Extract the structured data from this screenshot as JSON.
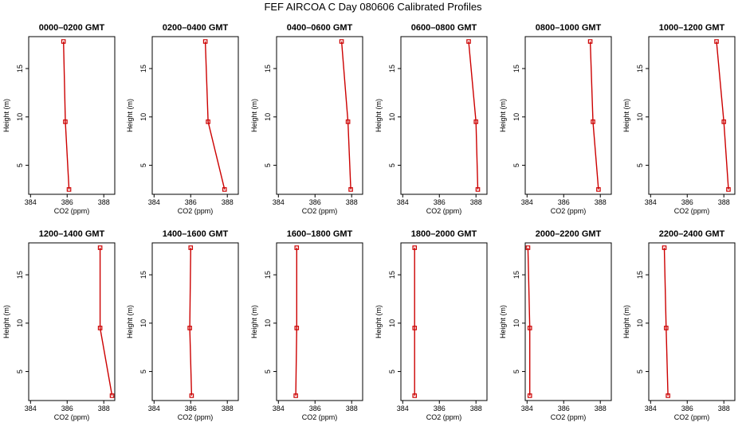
{
  "title": "FEF AIRCOA C  Day 080606  Calibrated Profiles",
  "colors": {
    "line": "#cc0000",
    "marker": "#cc0000",
    "axis": "#000000"
  },
  "chart_data": [
    {
      "type": "line",
      "title": "0000–0200 GMT",
      "xlabel": "CO2 (ppm)",
      "ylabel": "Height (m)",
      "xlim": [
        383.9,
        388.6
      ],
      "ylim": [
        2,
        18.3
      ],
      "xticks": [
        384,
        386,
        388
      ],
      "yticks": [
        5,
        10,
        15
      ],
      "x": [
        385.8,
        385.9,
        386.1
      ],
      "y": [
        17.8,
        9.5,
        2.5
      ]
    },
    {
      "type": "line",
      "title": "0200–0400 GMT",
      "xlabel": "CO2 (ppm)",
      "ylabel": "Height (m)",
      "xlim": [
        383.9,
        388.6
      ],
      "ylim": [
        2,
        18.3
      ],
      "xticks": [
        384,
        386,
        388
      ],
      "yticks": [
        5,
        10,
        15
      ],
      "x": [
        386.8,
        386.95,
        387.85
      ],
      "y": [
        17.8,
        9.5,
        2.5
      ]
    },
    {
      "type": "line",
      "title": "0400–0600 GMT",
      "xlabel": "CO2 (ppm)",
      "ylabel": "Height (m)",
      "xlim": [
        383.9,
        388.6
      ],
      "ylim": [
        2,
        18.3
      ],
      "xticks": [
        384,
        386,
        388
      ],
      "yticks": [
        5,
        10,
        15
      ],
      "x": [
        387.45,
        387.8,
        387.95
      ],
      "y": [
        17.8,
        9.5,
        2.5
      ]
    },
    {
      "type": "line",
      "title": "0600–0800 GMT",
      "xlabel": "CO2 (ppm)",
      "ylabel": "Height (m)",
      "xlim": [
        383.9,
        388.6
      ],
      "ylim": [
        2,
        18.3
      ],
      "xticks": [
        384,
        386,
        388
      ],
      "yticks": [
        5,
        10,
        15
      ],
      "x": [
        387.6,
        388.0,
        388.1
      ],
      "y": [
        17.8,
        9.5,
        2.5
      ]
    },
    {
      "type": "line",
      "title": "0800–1000 GMT",
      "xlabel": "CO2 (ppm)",
      "ylabel": "Height (m)",
      "xlim": [
        383.9,
        388.6
      ],
      "ylim": [
        2,
        18.3
      ],
      "xticks": [
        384,
        386,
        388
      ],
      "yticks": [
        5,
        10,
        15
      ],
      "x": [
        387.45,
        387.6,
        387.9
      ],
      "y": [
        17.8,
        9.5,
        2.5
      ]
    },
    {
      "type": "line",
      "title": "1000–1200 GMT",
      "xlabel": "CO2 (ppm)",
      "ylabel": "Height (m)",
      "xlim": [
        383.9,
        388.6
      ],
      "ylim": [
        2,
        18.3
      ],
      "xticks": [
        384,
        386,
        388
      ],
      "yticks": [
        5,
        10,
        15
      ],
      "x": [
        387.6,
        388.0,
        388.25
      ],
      "y": [
        17.8,
        9.5,
        2.5
      ]
    },
    {
      "type": "line",
      "title": "1200–1400 GMT",
      "xlabel": "CO2 (ppm)",
      "ylabel": "Height (m)",
      "xlim": [
        383.9,
        388.6
      ],
      "ylim": [
        2,
        18.3
      ],
      "xticks": [
        384,
        386,
        388
      ],
      "yticks": [
        5,
        10,
        15
      ],
      "x": [
        387.8,
        387.8,
        388.45
      ],
      "y": [
        17.8,
        9.5,
        2.5
      ]
    },
    {
      "type": "line",
      "title": "1400–1600 GMT",
      "xlabel": "CO2 (ppm)",
      "ylabel": "Height (m)",
      "xlim": [
        383.9,
        388.6
      ],
      "ylim": [
        2,
        18.3
      ],
      "xticks": [
        384,
        386,
        388
      ],
      "yticks": [
        5,
        10,
        15
      ],
      "x": [
        386.0,
        385.95,
        386.05
      ],
      "y": [
        17.8,
        9.5,
        2.5
      ]
    },
    {
      "type": "line",
      "title": "1600–1800 GMT",
      "xlabel": "CO2 (ppm)",
      "ylabel": "Height (m)",
      "xlim": [
        383.9,
        388.6
      ],
      "ylim": [
        2,
        18.3
      ],
      "xticks": [
        384,
        386,
        388
      ],
      "yticks": [
        5,
        10,
        15
      ],
      "x": [
        385.0,
        385.0,
        384.95
      ],
      "y": [
        17.8,
        9.5,
        2.5
      ]
    },
    {
      "type": "line",
      "title": "1800–2000 GMT",
      "xlabel": "CO2 (ppm)",
      "ylabel": "Height (m)",
      "xlim": [
        383.9,
        388.6
      ],
      "ylim": [
        2,
        18.3
      ],
      "xticks": [
        384,
        386,
        388
      ],
      "yticks": [
        5,
        10,
        15
      ],
      "x": [
        384.65,
        384.65,
        384.65
      ],
      "y": [
        17.8,
        9.5,
        2.5
      ]
    },
    {
      "type": "line",
      "title": "2000–2200 GMT",
      "xlabel": "CO2 (ppm)",
      "ylabel": "Height (m)",
      "xlim": [
        383.9,
        388.6
      ],
      "ylim": [
        2,
        18.3
      ],
      "xticks": [
        384,
        386,
        388
      ],
      "yticks": [
        5,
        10,
        15
      ],
      "x": [
        384.05,
        384.15,
        384.15
      ],
      "y": [
        17.8,
        9.5,
        2.5
      ]
    },
    {
      "type": "line",
      "title": "2200–2400 GMT",
      "xlabel": "CO2 (ppm)",
      "ylabel": "Height (m)",
      "xlim": [
        383.9,
        388.6
      ],
      "ylim": [
        2,
        18.3
      ],
      "xticks": [
        384,
        386,
        388
      ],
      "yticks": [
        5,
        10,
        15
      ],
      "x": [
        384.75,
        384.85,
        384.95
      ],
      "y": [
        17.8,
        9.5,
        2.5
      ]
    }
  ]
}
